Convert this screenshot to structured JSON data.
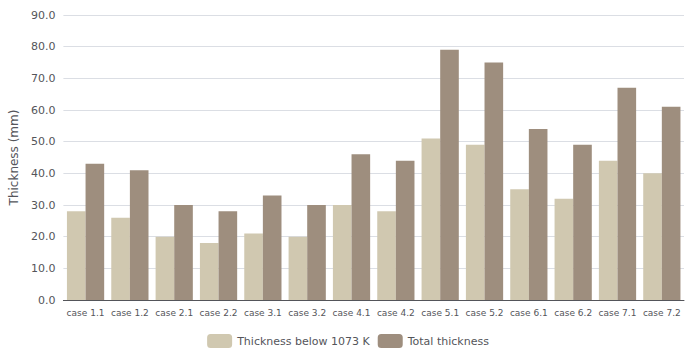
{
  "chart_data": {
    "type": "bar",
    "ylabel": "Thickness (mm)",
    "categories": [
      "case 1.1",
      "case 1.2",
      "case 2.1",
      "case 2.2",
      "case 3.1",
      "case 3.2",
      "case 4.1",
      "case 4.2",
      "case 5.1",
      "case 5.2",
      "case 6.1",
      "case 6.2",
      "case 7.1",
      "case 7.2"
    ],
    "series": [
      {
        "name": "Thickness below 1073 K",
        "color": "#d0c8b0",
        "values": [
          28,
          26,
          20,
          18,
          21,
          20,
          30,
          28,
          51,
          49,
          35,
          32,
          44,
          40
        ]
      },
      {
        "name": "Total thickness",
        "color": "#9e8e7e",
        "values": [
          43,
          41,
          30,
          28,
          33,
          30,
          46,
          44,
          79,
          75,
          54,
          49,
          67,
          61
        ]
      }
    ],
    "ylim": [
      0,
      90
    ],
    "yticks": [
      {
        "value": 0,
        "label": "0.0"
      },
      {
        "value": 10,
        "label": "10.0"
      },
      {
        "value": 20,
        "label": "20.0"
      },
      {
        "value": 30,
        "label": "30.0"
      },
      {
        "value": 40,
        "label": "40.0"
      },
      {
        "value": 50,
        "label": "50.0"
      },
      {
        "value": 60,
        "label": "60.0"
      },
      {
        "value": 70,
        "label": "70.0"
      },
      {
        "value": 80,
        "label": "80.0"
      },
      {
        "value": 90,
        "label": "90.0"
      }
    ],
    "grid": true,
    "legend": "bottom"
  }
}
